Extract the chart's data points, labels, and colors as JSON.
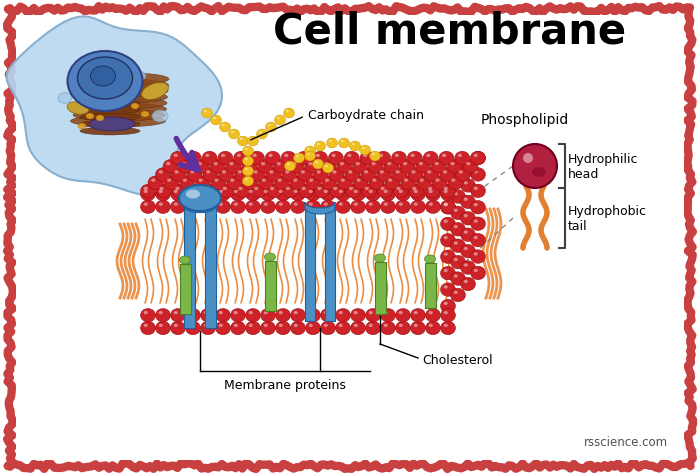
{
  "title": "Cell membrane",
  "title_fontsize": 30,
  "background_color": "#ffffff",
  "border_color": "#c94040",
  "labels": {
    "carbohydrate_chain": "Carboydrate chain",
    "phospholipid": "Phospholipid",
    "hydrophilic_head": "Hydrophilic\nhead",
    "hydrophobic_tail": "Hydrophobic\ntail",
    "cholesterol": "Cholesterol",
    "membrane_proteins": "Membrane proteins",
    "website": "rsscience.com"
  },
  "colors": {
    "membrane_red": "#cc2228",
    "membrane_dark_red": "#8b0000",
    "membrane_shadow": "#a01820",
    "protein_blue": "#4a90c4",
    "protein_blue_dark": "#2060a0",
    "cholesterol_green": "#7ab648",
    "cholesterol_green_dark": "#4a8020",
    "carb_yellow": "#f0c020",
    "carb_yellow_dark": "#c09000",
    "lipid_orange": "#e87820",
    "phospholipid_head": "#b22040",
    "phospholipid_head_dark": "#700020",
    "phospholipid_tail": "#e08030",
    "arrow_purple": "#6030a0",
    "bracket_color": "#404040",
    "label_color": "#202020"
  }
}
